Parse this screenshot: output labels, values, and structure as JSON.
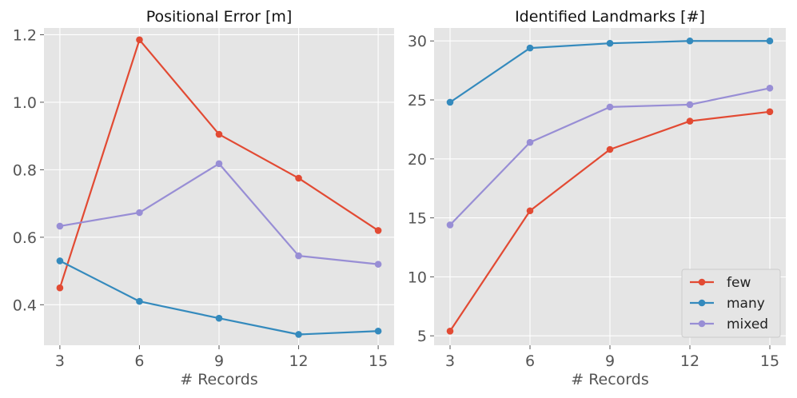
{
  "chart_data": [
    {
      "type": "line",
      "title": "Positional Error [m]",
      "xlabel": "# Records",
      "ylabel": "",
      "x": [
        3,
        6,
        9,
        12,
        15
      ],
      "xticks": [
        3,
        6,
        9,
        12,
        15
      ],
      "xlim": [
        2.4,
        15.6
      ],
      "ylim": [
        0.28,
        1.22
      ],
      "yticks": [
        0.4,
        0.6,
        0.8,
        1.0,
        1.2
      ],
      "ytick_labels": [
        "0.4",
        "0.6",
        "0.8",
        "1.0",
        "1.2"
      ],
      "grid": true,
      "legend": null,
      "series": [
        {
          "name": "few",
          "color": "#E24A33",
          "values": [
            0.45,
            1.185,
            0.905,
            0.775,
            0.62
          ]
        },
        {
          "name": "many",
          "color": "#348ABD",
          "values": [
            0.53,
            0.41,
            0.36,
            0.312,
            0.322
          ]
        },
        {
          "name": "mixed",
          "color": "#988ED5",
          "values": [
            0.633,
            0.673,
            0.818,
            0.545,
            0.52
          ]
        }
      ]
    },
    {
      "type": "line",
      "title": "Identified Landmarks [#]",
      "xlabel": "# Records",
      "ylabel": "",
      "x": [
        3,
        6,
        9,
        12,
        15
      ],
      "xticks": [
        3,
        6,
        9,
        12,
        15
      ],
      "xlim": [
        2.4,
        15.6
      ],
      "ylim": [
        4.2,
        31.1
      ],
      "yticks": [
        5,
        10,
        15,
        20,
        25,
        30
      ],
      "ytick_labels": [
        "5",
        "10",
        "15",
        "20",
        "25",
        "30"
      ],
      "grid": true,
      "legend": "lower-right",
      "series": [
        {
          "name": "few",
          "color": "#E24A33",
          "values": [
            5.4,
            15.6,
            20.8,
            23.2,
            24.0
          ]
        },
        {
          "name": "many",
          "color": "#348ABD",
          "values": [
            24.8,
            29.4,
            29.8,
            30.0,
            30.0
          ]
        },
        {
          "name": "mixed",
          "color": "#988ED5",
          "values": [
            14.4,
            21.4,
            24.4,
            24.6,
            26.0
          ]
        }
      ]
    }
  ]
}
